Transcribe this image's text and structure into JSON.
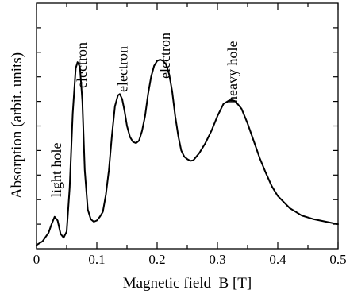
{
  "chart_data": {
    "type": "line",
    "title": "",
    "xlabel": "Magnetic field  B [T]",
    "ylabel": "Absorption (arbit. units)",
    "xlim": [
      0,
      0.5
    ],
    "ylim": [
      0,
      10
    ],
    "x_ticks": [
      "0",
      "0.1",
      "0.2",
      "0.3",
      "0.4",
      "0.5"
    ],
    "y_ticks_labeled": false,
    "grid": false,
    "legend": "none",
    "series": [
      {
        "x": [
          0,
          0.01,
          0.02,
          0.025,
          0.03,
          0.035,
          0.04,
          0.045,
          0.05,
          0.055,
          0.06,
          0.065,
          0.068,
          0.072,
          0.076,
          0.08,
          0.085,
          0.09,
          0.095,
          0.1,
          0.105,
          0.11,
          0.115,
          0.12,
          0.125,
          0.13,
          0.135,
          0.138,
          0.142,
          0.146,
          0.15,
          0.155,
          0.16,
          0.165,
          0.17,
          0.175,
          0.18,
          0.185,
          0.19,
          0.195,
          0.2,
          0.205,
          0.21,
          0.215,
          0.22,
          0.225,
          0.23,
          0.235,
          0.24,
          0.245,
          0.25,
          0.255,
          0.26,
          0.27,
          0.28,
          0.29,
          0.3,
          0.31,
          0.32,
          0.325,
          0.33,
          0.34,
          0.35,
          0.36,
          0.37,
          0.38,
          0.39,
          0.4,
          0.42,
          0.44,
          0.46,
          0.48,
          0.5
        ],
        "y": [
          0.15,
          0.3,
          0.65,
          1.0,
          1.3,
          1.15,
          0.6,
          0.45,
          0.7,
          2.5,
          5.5,
          7.35,
          7.6,
          7.4,
          6.0,
          3.2,
          1.6,
          1.2,
          1.1,
          1.15,
          1.3,
          1.5,
          2.2,
          3.2,
          4.6,
          5.8,
          6.25,
          6.3,
          6.1,
          5.6,
          5.0,
          4.55,
          4.35,
          4.3,
          4.4,
          4.8,
          5.4,
          6.3,
          7.0,
          7.45,
          7.65,
          7.7,
          7.65,
          7.5,
          7.1,
          6.4,
          5.4,
          4.6,
          4.0,
          3.75,
          3.65,
          3.58,
          3.6,
          3.9,
          4.3,
          4.8,
          5.4,
          5.9,
          6.05,
          6.05,
          6.0,
          5.7,
          5.1,
          4.4,
          3.7,
          3.1,
          2.55,
          2.15,
          1.65,
          1.35,
          1.2,
          1.1,
          1.0
        ]
      }
    ],
    "annotations": [
      {
        "text": "light hole",
        "x": 0.033
      },
      {
        "text": "electron",
        "x": 0.075
      },
      {
        "text": "electron",
        "x": 0.143
      },
      {
        "text": "electron",
        "x": 0.213
      },
      {
        "text": "heavy hole",
        "x": 0.325
      }
    ]
  }
}
